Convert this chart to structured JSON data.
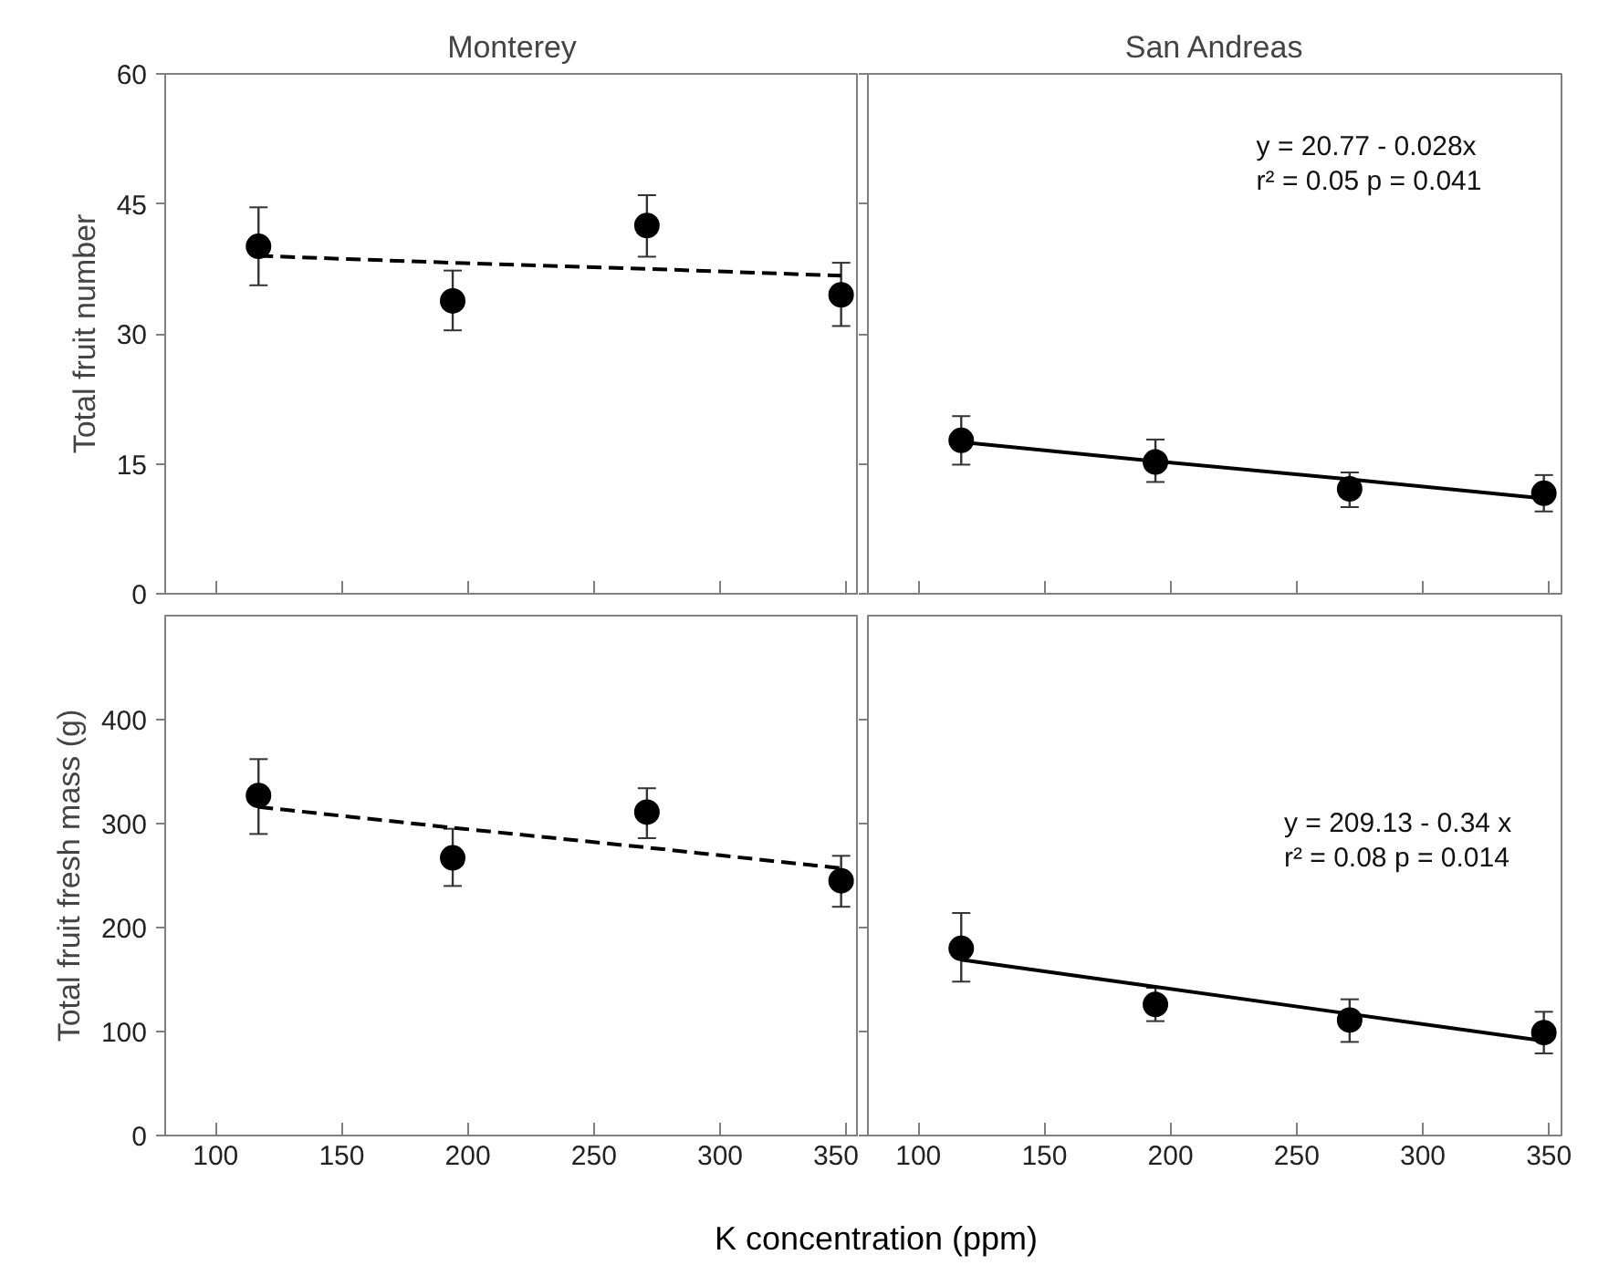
{
  "chart_data": [
    {
      "type": "scatter",
      "title": "Monterey",
      "ylabel": "Total fruit number",
      "xlim": [
        80,
        355
      ],
      "xticks": [
        100,
        150,
        200,
        250,
        300,
        350
      ],
      "ylim": [
        0,
        60
      ],
      "yticks": [
        0,
        15,
        30,
        45,
        60
      ],
      "tick_labels": "y",
      "grid": false,
      "marker": "circle",
      "x": [
        117,
        194,
        271,
        348
      ],
      "series": [
        {
          "color": "#000000",
          "values": [
            40.1,
            33.8,
            42.5,
            34.5
          ],
          "errors": [
            [
              35.6,
              44.6
            ],
            [
              30.4,
              37.3
            ],
            [
              38.9,
              46.0
            ],
            [
              30.9,
              38.2
            ]
          ]
        },
        {
          "type": "line",
          "color": "#000000",
          "line_style": "dashed",
          "marker": "none",
          "values": [
            39.0,
            38.2,
            37.5,
            36.7
          ]
        }
      ]
    },
    {
      "type": "scatter",
      "title": "San Andreas",
      "xlim": [
        80,
        355
      ],
      "xticks": [
        100,
        150,
        200,
        250,
        300,
        350
      ],
      "ylim": [
        0,
        60
      ],
      "yticks": [
        0,
        15,
        30,
        45,
        60
      ],
      "tick_labels": false,
      "grid": false,
      "marker": "circle",
      "x": [
        117,
        194,
        271,
        348
      ],
      "annotations": [
        "y = 20.77 - 0.028x",
        "r² = 0.05 p = 0.041"
      ],
      "series": [
        {
          "color": "#000000",
          "values": [
            17.7,
            15.2,
            12.1,
            11.6
          ],
          "errors": [
            [
              14.9,
              20.5
            ],
            [
              12.9,
              17.8
            ],
            [
              10.0,
              14.0
            ],
            [
              9.5,
              13.7
            ]
          ]
        },
        {
          "type": "line",
          "color": "#000000",
          "line_style": "solid",
          "marker": "none",
          "values": [
            17.5,
            15.3,
            13.2,
            11.0
          ]
        }
      ]
    },
    {
      "type": "scatter",
      "ylabel": "Total fruit fresh mass (g)",
      "xlabel": "K concentration (ppm)",
      "xlim": [
        80,
        355
      ],
      "xticks": [
        100,
        150,
        200,
        250,
        300,
        350
      ],
      "ylim": [
        0,
        500
      ],
      "yticks": [
        0,
        100,
        200,
        300,
        400
      ],
      "grid": false,
      "marker": "circle",
      "x": [
        117,
        194,
        271,
        348
      ],
      "series": [
        {
          "color": "#000000",
          "values": [
            327,
            267,
            311,
            245
          ],
          "errors": [
            [
              290,
              362
            ],
            [
              240,
              295
            ],
            [
              286,
              334
            ],
            [
              220,
              269
            ]
          ]
        },
        {
          "type": "line",
          "color": "#000000",
          "line_style": "dashed",
          "marker": "none",
          "values": [
            316,
            296,
            277,
            257
          ]
        }
      ]
    },
    {
      "type": "scatter",
      "xlim": [
        80,
        355
      ],
      "xticks": [
        100,
        150,
        200,
        250,
        300,
        350
      ],
      "ylim": [
        0,
        500
      ],
      "yticks": [
        0,
        100,
        200,
        300,
        400
      ],
      "tick_labels": "x",
      "grid": false,
      "marker": "circle",
      "x": [
        117,
        194,
        271,
        348
      ],
      "annotations": [
        "y = 209.13 - 0.34 x",
        "r² = 0.08 p = 0.014"
      ],
      "series": [
        {
          "color": "#000000",
          "values": [
            180,
            126,
            111,
            99
          ],
          "errors": [
            [
              148,
              214
            ],
            [
              110,
              142
            ],
            [
              90,
              131
            ],
            [
              79,
              119
            ]
          ]
        },
        {
          "type": "line",
          "color": "#000000",
          "line_style": "solid",
          "marker": "none",
          "values": [
            169,
            143,
            117,
            91
          ]
        }
      ]
    }
  ]
}
